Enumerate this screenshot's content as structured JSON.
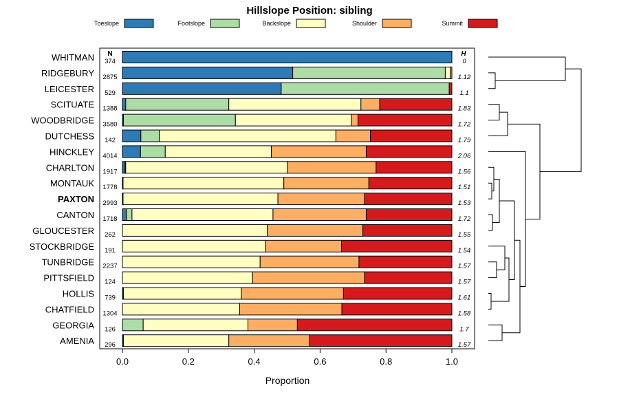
{
  "chart_data": {
    "type": "bar",
    "orientation": "horizontal",
    "stacked": true,
    "title": "Hillslope Position: sibling",
    "xlabel": "Proportion",
    "ylabel": "",
    "xlim": [
      0,
      1
    ],
    "xticks": [
      "0.0",
      "0.2",
      "0.4",
      "0.6",
      "0.8",
      "1.0"
    ],
    "n_header": "N",
    "h_header": "H",
    "highlight": "PAXTON",
    "series": [
      {
        "name": "Toeslope",
        "color": "#2C7BB6"
      },
      {
        "name": "Footslope",
        "color": "#ABDDA4"
      },
      {
        "name": "Backslope",
        "color": "#FFFFBF"
      },
      {
        "name": "Shoulder",
        "color": "#FDAE61"
      },
      {
        "name": "Summit",
        "color": "#D7191C"
      }
    ],
    "categories": [
      {
        "label": "WHITMAN",
        "n": "374",
        "h": "0",
        "values": [
          1.0,
          0.0,
          0.0,
          0.0,
          0.0
        ]
      },
      {
        "label": "RIDGEBURY",
        "n": "2875",
        "h": "1.12",
        "values": [
          0.517,
          0.463,
          0.015,
          0.005,
          0.0
        ]
      },
      {
        "label": "LEICESTER",
        "n": "529",
        "h": "1.1",
        "values": [
          0.482,
          0.51,
          0.0,
          0.0,
          0.008
        ]
      },
      {
        "label": "SCITUATE",
        "n": "1388",
        "h": "1.83",
        "values": [
          0.01,
          0.313,
          0.401,
          0.057,
          0.219
        ]
      },
      {
        "label": "WOODBRIDGE",
        "n": "3580",
        "h": "1.72",
        "values": [
          0.003,
          0.34,
          0.352,
          0.02,
          0.285
        ]
      },
      {
        "label": "DUTCHESS",
        "n": "142",
        "h": "1.79",
        "values": [
          0.056,
          0.056,
          0.536,
          0.105,
          0.247
        ]
      },
      {
        "label": "HINCKLEY",
        "n": "4014",
        "h": "2.06",
        "values": [
          0.055,
          0.075,
          0.322,
          0.288,
          0.26
        ]
      },
      {
        "label": "CHARLTON",
        "n": "1917",
        "h": "1.56",
        "values": [
          0.008,
          0.002,
          0.49,
          0.27,
          0.23
        ]
      },
      {
        "label": "MONTAUK",
        "n": "1778",
        "h": "1.51",
        "values": [
          0.0,
          0.002,
          0.488,
          0.258,
          0.252
        ]
      },
      {
        "label": "PAXTON",
        "n": "2993",
        "h": "1.53",
        "values": [
          0.0,
          0.002,
          0.47,
          0.263,
          0.265
        ]
      },
      {
        "label": "CANTON",
        "n": "1718",
        "h": "1.72",
        "values": [
          0.012,
          0.017,
          0.428,
          0.283,
          0.26
        ]
      },
      {
        "label": "GLOUCESTER",
        "n": "262",
        "h": "1.55",
        "values": [
          0.0,
          0.0,
          0.44,
          0.29,
          0.27
        ]
      },
      {
        "label": "STOCKBRIDGE",
        "n": "191",
        "h": "1.54",
        "values": [
          0.0,
          0.0,
          0.435,
          0.23,
          0.335
        ]
      },
      {
        "label": "TUNBRIDGE",
        "n": "2237",
        "h": "1.57",
        "values": [
          0.0,
          0.0,
          0.418,
          0.3,
          0.282
        ]
      },
      {
        "label": "PITTSFIELD",
        "n": "124",
        "h": "1.57",
        "values": [
          0.0,
          0.0,
          0.395,
          0.34,
          0.265
        ]
      },
      {
        "label": "HOLLIS",
        "n": "739",
        "h": "1.61",
        "values": [
          0.003,
          0.0,
          0.358,
          0.31,
          0.329
        ]
      },
      {
        "label": "CHATFIELD",
        "n": "1304",
        "h": "1.58",
        "values": [
          0.0,
          0.0,
          0.356,
          0.31,
          0.334
        ]
      },
      {
        "label": "GEORGIA",
        "n": "126",
        "h": "1.7",
        "values": [
          0.0,
          0.063,
          0.318,
          0.15,
          0.469
        ]
      },
      {
        "label": "AMENIA",
        "n": "296",
        "h": "1.57",
        "values": [
          0.003,
          0.0,
          0.32,
          0.245,
          0.432
        ]
      }
    ]
  }
}
